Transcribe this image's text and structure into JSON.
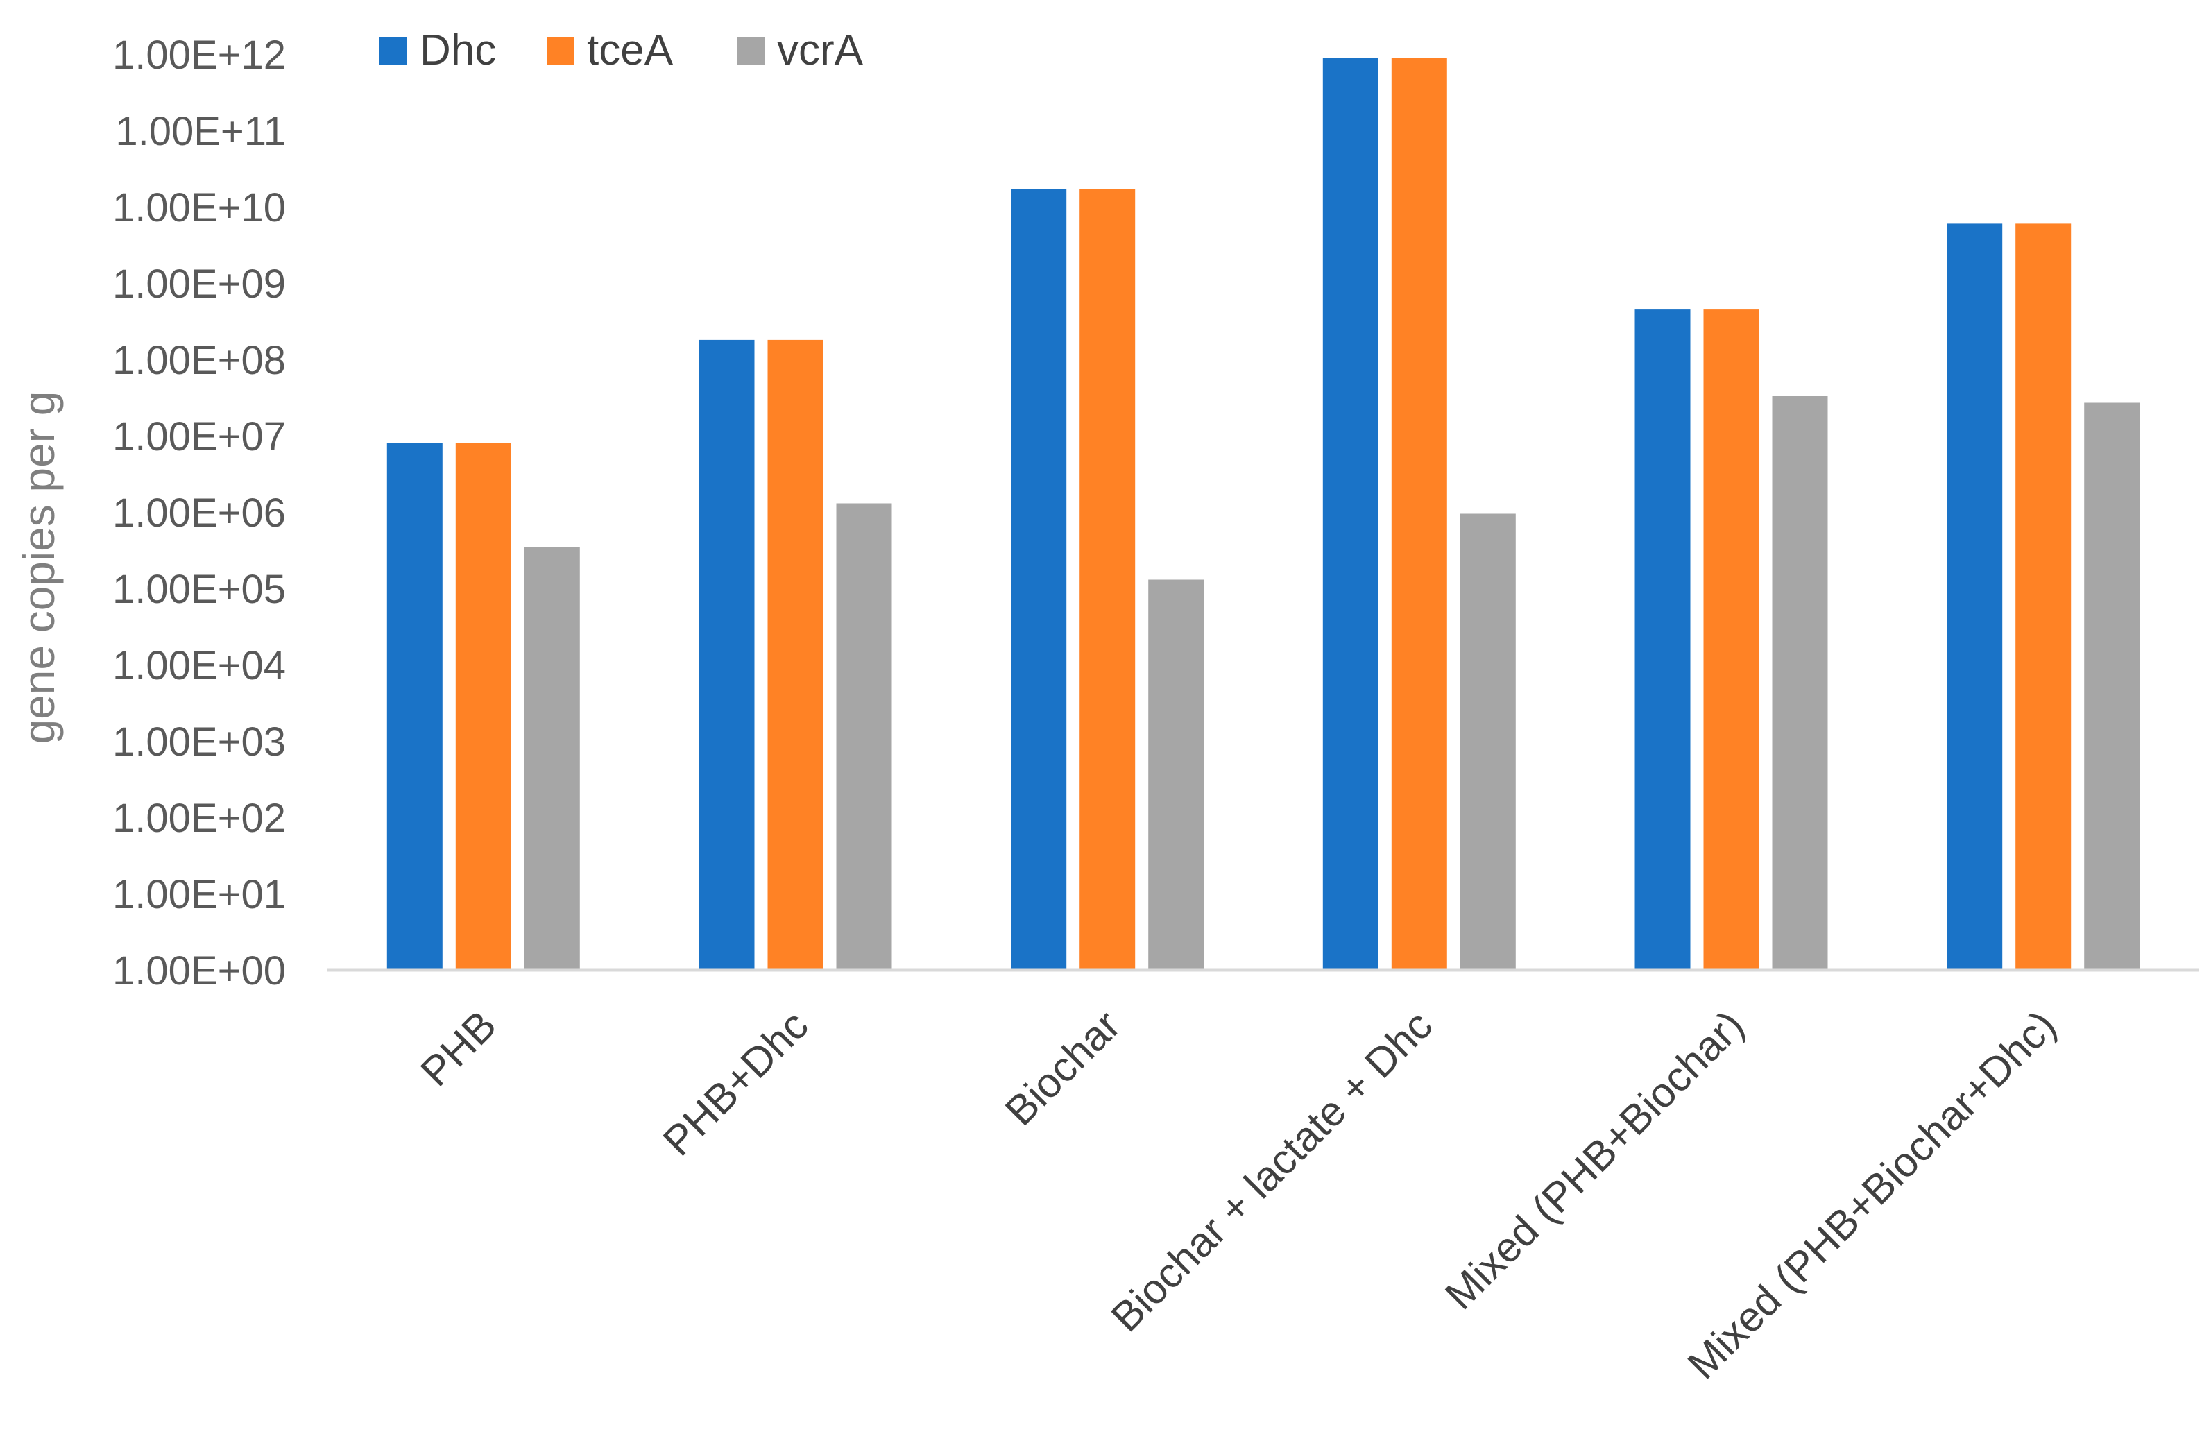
{
  "chart_data": {
    "type": "bar",
    "title": "",
    "xlabel": "",
    "ylabel": "gene copies per g",
    "yscale": "log",
    "ylim": [
      1,
      1000000000000
    ],
    "yticks": [
      "1.00E+00",
      "1.00E+01",
      "1.00E+02",
      "1.00E+03",
      "1.00E+04",
      "1.00E+05",
      "1.00E+06",
      "1.00E+07",
      "1.00E+08",
      "1.00E+09",
      "1.00E+10",
      "1.00E+11",
      "1.00E+12"
    ],
    "grid": false,
    "legend_position": "top-left",
    "categories": [
      "PHB",
      "PHB+Dhc",
      "Biochar",
      "Biochar + lactate + Dhc",
      "Mixed (PHB+Biochar)",
      "Mixed (PHB+Biochar+Dhc)"
    ],
    "series": [
      {
        "name": "Dhc",
        "color": "#1a73c7",
        "values": [
          8000000,
          180000000,
          17000000000,
          900000000000,
          450000000,
          6000000000
        ]
      },
      {
        "name": "tceA",
        "color": "#ff8225",
        "values": [
          8000000,
          180000000,
          17000000000,
          900000000000,
          450000000,
          6000000000
        ]
      },
      {
        "name": "vcrA",
        "color": "#a6a6a6",
        "values": [
          350000,
          1300000,
          130000,
          950000,
          33000000,
          27000000
        ]
      }
    ]
  }
}
